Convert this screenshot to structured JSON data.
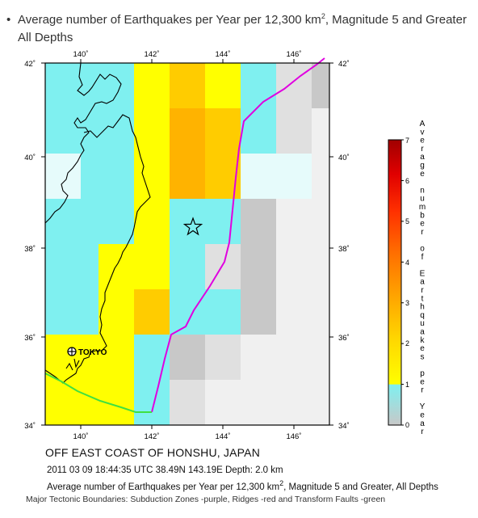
{
  "header": {
    "bullet": "•",
    "title_prefix": "Average number of Earthquakes per Year per 12,300 km",
    "title_sup": "2",
    "title_suffix": ", Magnitude 5 and Greater",
    "title_line2": "All Depths"
  },
  "map": {
    "lon_ticks": [
      "140˚",
      "142˚",
      "144˚",
      "146˚"
    ],
    "lat_ticks": [
      "42˚",
      "40˚",
      "38˚",
      "36˚",
      "34˚"
    ],
    "city_label": "TOKYO",
    "colors": {
      "cyan": "#7ff0f0",
      "yellow": "#ffff00",
      "gold": "#ffcc00",
      "orange": "#ffb300",
      "ltgray": "#c8c8c8",
      "xltgray": "#e0e0e0",
      "pale": "#f0f0f0",
      "ltcyan": "#e6fbfb",
      "subduction": "#e000e0",
      "transform": "#40e040"
    }
  },
  "legend": {
    "ticks": [
      "7",
      "6",
      "5",
      "4",
      "3",
      "2",
      "1",
      "0"
    ],
    "label_chars": [
      "A",
      "v",
      "e",
      "r",
      "a",
      "g",
      "e",
      "",
      "n",
      "u",
      "m",
      "b",
      "e",
      "r",
      "",
      "o",
      "f",
      "",
      "E",
      "a",
      "r",
      "t",
      "h",
      "q",
      "u",
      "a",
      "k",
      "e",
      "s",
      "",
      "p",
      "e",
      "r",
      "",
      "Y",
      "e",
      "a",
      "r"
    ]
  },
  "captions": {
    "place": "OFF EAST COAST OF HONSHU, JAPAN",
    "event": "2011 03 09 18:44:35 UTC 38.49N 143.19E Depth: 2.0 km",
    "sub_prefix": "Average number of Earthquakes per Year per 12,300 km",
    "sub_sup": "2",
    "sub_suffix": ", Magnitude 5 and Greater, All Depths",
    "tectonic": "Major Tectonic Boundaries: Subduction Zones -purple, Ridges -red and Transform Faults -green"
  }
}
